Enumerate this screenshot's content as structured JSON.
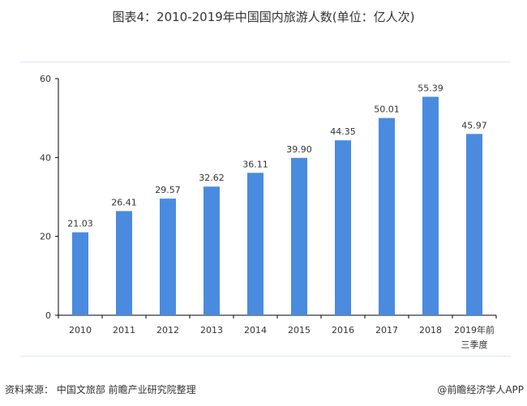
{
  "title": "图表4：2010-2019年中国国内旅游人数(单位：亿人次)",
  "source": "资料来源： 中国文旅部 前瞻产业研究院整理",
  "brand": "@前瞻经济学人APP",
  "chart_data": {
    "type": "bar",
    "title": "图表4：2010-2019年中国国内旅游人数(单位：亿人次)",
    "xlabel": "",
    "ylabel": "亿人次",
    "categories": [
      "2010",
      "2011",
      "2012",
      "2013",
      "2014",
      "2015",
      "2016",
      "2017",
      "2018",
      "2019年前\n三季度"
    ],
    "values": [
      21.03,
      26.41,
      29.57,
      32.62,
      36.11,
      39.9,
      44.35,
      50.01,
      55.39,
      45.97
    ],
    "value_labels": [
      "21.03",
      "26.41",
      "29.57",
      "32.62",
      "36.11",
      "39.90",
      "44.35",
      "50.01",
      "55.39",
      "45.97"
    ],
    "ylim": [
      0,
      60
    ],
    "yticks": [
      0,
      20,
      40,
      60
    ],
    "grid": false,
    "bar_color": "#4a8be0"
  }
}
